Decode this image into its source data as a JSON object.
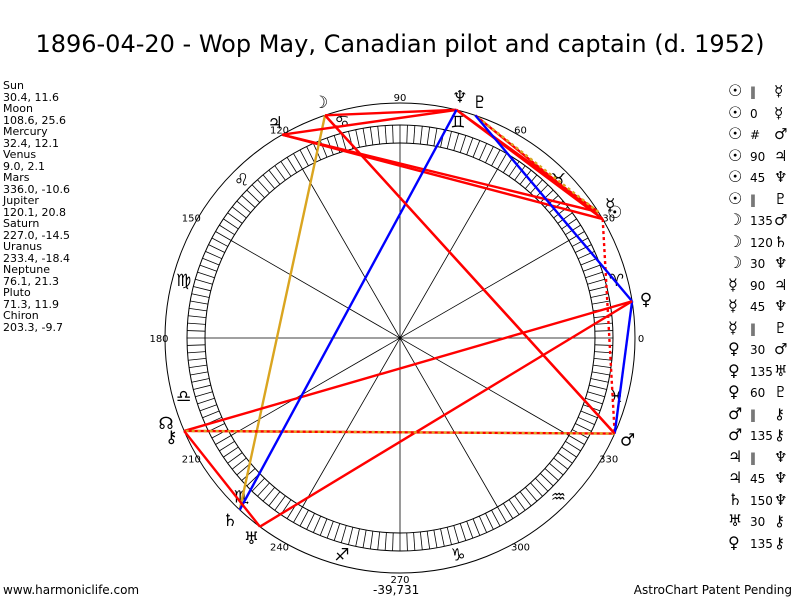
{
  "title": "1896-04-20 - Wop May, Canadian pilot and captain (d. 1952)",
  "planets": [
    {
      "name": "Sun",
      "values": "30.4, 11.6",
      "lon": 30.4,
      "glyph": "☉"
    },
    {
      "name": "Moon",
      "values": "108.6, 25.6",
      "lon": 108.6,
      "glyph": "☽"
    },
    {
      "name": "Mercury",
      "values": "32.4, 12.1",
      "lon": 32.4,
      "glyph": "☿"
    },
    {
      "name": "Venus",
      "values": "9.0, 2.1",
      "lon": 9.0,
      "glyph": "♀"
    },
    {
      "name": "Mars",
      "values": "336.0, -10.6",
      "lon": 336.0,
      "glyph": "♂"
    },
    {
      "name": "Jupiter",
      "values": "120.1, 20.8",
      "lon": 120.1,
      "glyph": "♃"
    },
    {
      "name": "Saturn",
      "values": "227.0, -14.5",
      "lon": 227.0,
      "glyph": "♄"
    },
    {
      "name": "Uranus",
      "values": "233.4, -18.4",
      "lon": 233.4,
      "glyph": "♅"
    },
    {
      "name": "Neptune",
      "values": "76.1, 21.3",
      "lon": 76.1,
      "glyph": "♆"
    },
    {
      "name": "Pluto",
      "values": "71.3, 11.9",
      "lon": 71.3,
      "glyph": "♇"
    },
    {
      "name": "Chiron",
      "values": "203.3, -9.7",
      "lon": 203.3,
      "glyph": "⚷"
    },
    {
      "name": "North Node",
      "lon": 200.0,
      "glyph": "☊"
    }
  ],
  "aspects": [
    {
      "p1": "☉",
      "asp": "‖",
      "p2": "☿"
    },
    {
      "p1": "☉",
      "asp": "0",
      "p2": "☿"
    },
    {
      "p1": "☉",
      "asp": "#",
      "p2": "♂"
    },
    {
      "p1": "☉",
      "asp": "90",
      "p2": "♃"
    },
    {
      "p1": "☉",
      "asp": "45",
      "p2": "♆"
    },
    {
      "p1": "☉",
      "asp": "‖",
      "p2": "♇"
    },
    {
      "p1": "☽",
      "asp": "135",
      "p2": "♂"
    },
    {
      "p1": "☽",
      "asp": "120",
      "p2": "♄"
    },
    {
      "p1": "☽",
      "asp": "30",
      "p2": "♆"
    },
    {
      "p1": "☿",
      "asp": "90",
      "p2": "♃"
    },
    {
      "p1": "☿",
      "asp": "45",
      "p2": "♆"
    },
    {
      "p1": "☿",
      "asp": "‖",
      "p2": "♇"
    },
    {
      "p1": "♀",
      "asp": "30",
      "p2": "♂"
    },
    {
      "p1": "♀",
      "asp": "135",
      "p2": "♅"
    },
    {
      "p1": "♀",
      "asp": "60",
      "p2": "♇"
    },
    {
      "p1": "♂",
      "asp": "‖",
      "p2": "⚷"
    },
    {
      "p1": "♂",
      "asp": "135",
      "p2": "⚷"
    },
    {
      "p1": "♃",
      "asp": "‖",
      "p2": "♆"
    },
    {
      "p1": "♃",
      "asp": "45",
      "p2": "♆"
    },
    {
      "p1": "♄",
      "asp": "150",
      "p2": "♆"
    },
    {
      "p1": "♅",
      "asp": "30",
      "p2": "⚷"
    },
    {
      "p1": "♀",
      "asp": "135",
      "p2": "⚷"
    }
  ],
  "degree_labels": [
    "0",
    "30",
    "60",
    "90",
    "120",
    "150",
    "180",
    "210",
    "240",
    "270",
    "300",
    "330"
  ],
  "signs": [
    "♈",
    "♉",
    "♊",
    "♋",
    "♌",
    "♍",
    "♎",
    "♏",
    "♐",
    "♑",
    "♒",
    "♓"
  ],
  "chart_lines": [
    {
      "from": "Sun",
      "to": "Jupiter",
      "color": "#ff0000"
    },
    {
      "from": "Sun",
      "to": "Neptune",
      "color": "#ff0000"
    },
    {
      "from": "Sun",
      "to": "Mars",
      "color": "#ff0000",
      "dashed": true
    },
    {
      "from": "Sun",
      "to": "Pluto",
      "color": "#ff0000"
    },
    {
      "from": "Mercury",
      "to": "Jupiter",
      "color": "#ff0000"
    },
    {
      "from": "Mercury",
      "to": "Neptune",
      "color": "#ff0000"
    },
    {
      "from": "Mercury",
      "to": "Pluto",
      "color": "#daa520",
      "dashed": true
    },
    {
      "from": "Moon",
      "to": "Mars",
      "color": "#ff0000"
    },
    {
      "from": "Moon",
      "to": "Saturn",
      "color": "#daa520"
    },
    {
      "from": "Moon",
      "to": "Neptune",
      "color": "#ff0000"
    },
    {
      "from": "Venus",
      "to": "Mars",
      "color": "#0000ff"
    },
    {
      "from": "Venus",
      "to": "Uranus",
      "color": "#ff0000"
    },
    {
      "from": "Venus",
      "to": "Pluto",
      "color": "#0000ff"
    },
    {
      "from": "Venus",
      "to": "Chiron",
      "color": "#ff0000"
    },
    {
      "from": "Mars",
      "to": "Chiron",
      "color": "#ff0000"
    },
    {
      "from": "Mars",
      "to": "Chiron",
      "color": "#daa520",
      "dashed": true
    },
    {
      "from": "Jupiter",
      "to": "Neptune",
      "color": "#ff0000"
    },
    {
      "from": "Saturn",
      "to": "Neptune",
      "color": "#0000ff"
    },
    {
      "from": "Uranus",
      "to": "Chiron",
      "color": "#ff0000"
    },
    {
      "from": "Mars",
      "to": "Moon",
      "color": "#ff0000"
    }
  ],
  "footer": {
    "left": "www.harmoniclife.com",
    "middle": "-39,731",
    "right": "AstroChart Patent Pending"
  }
}
